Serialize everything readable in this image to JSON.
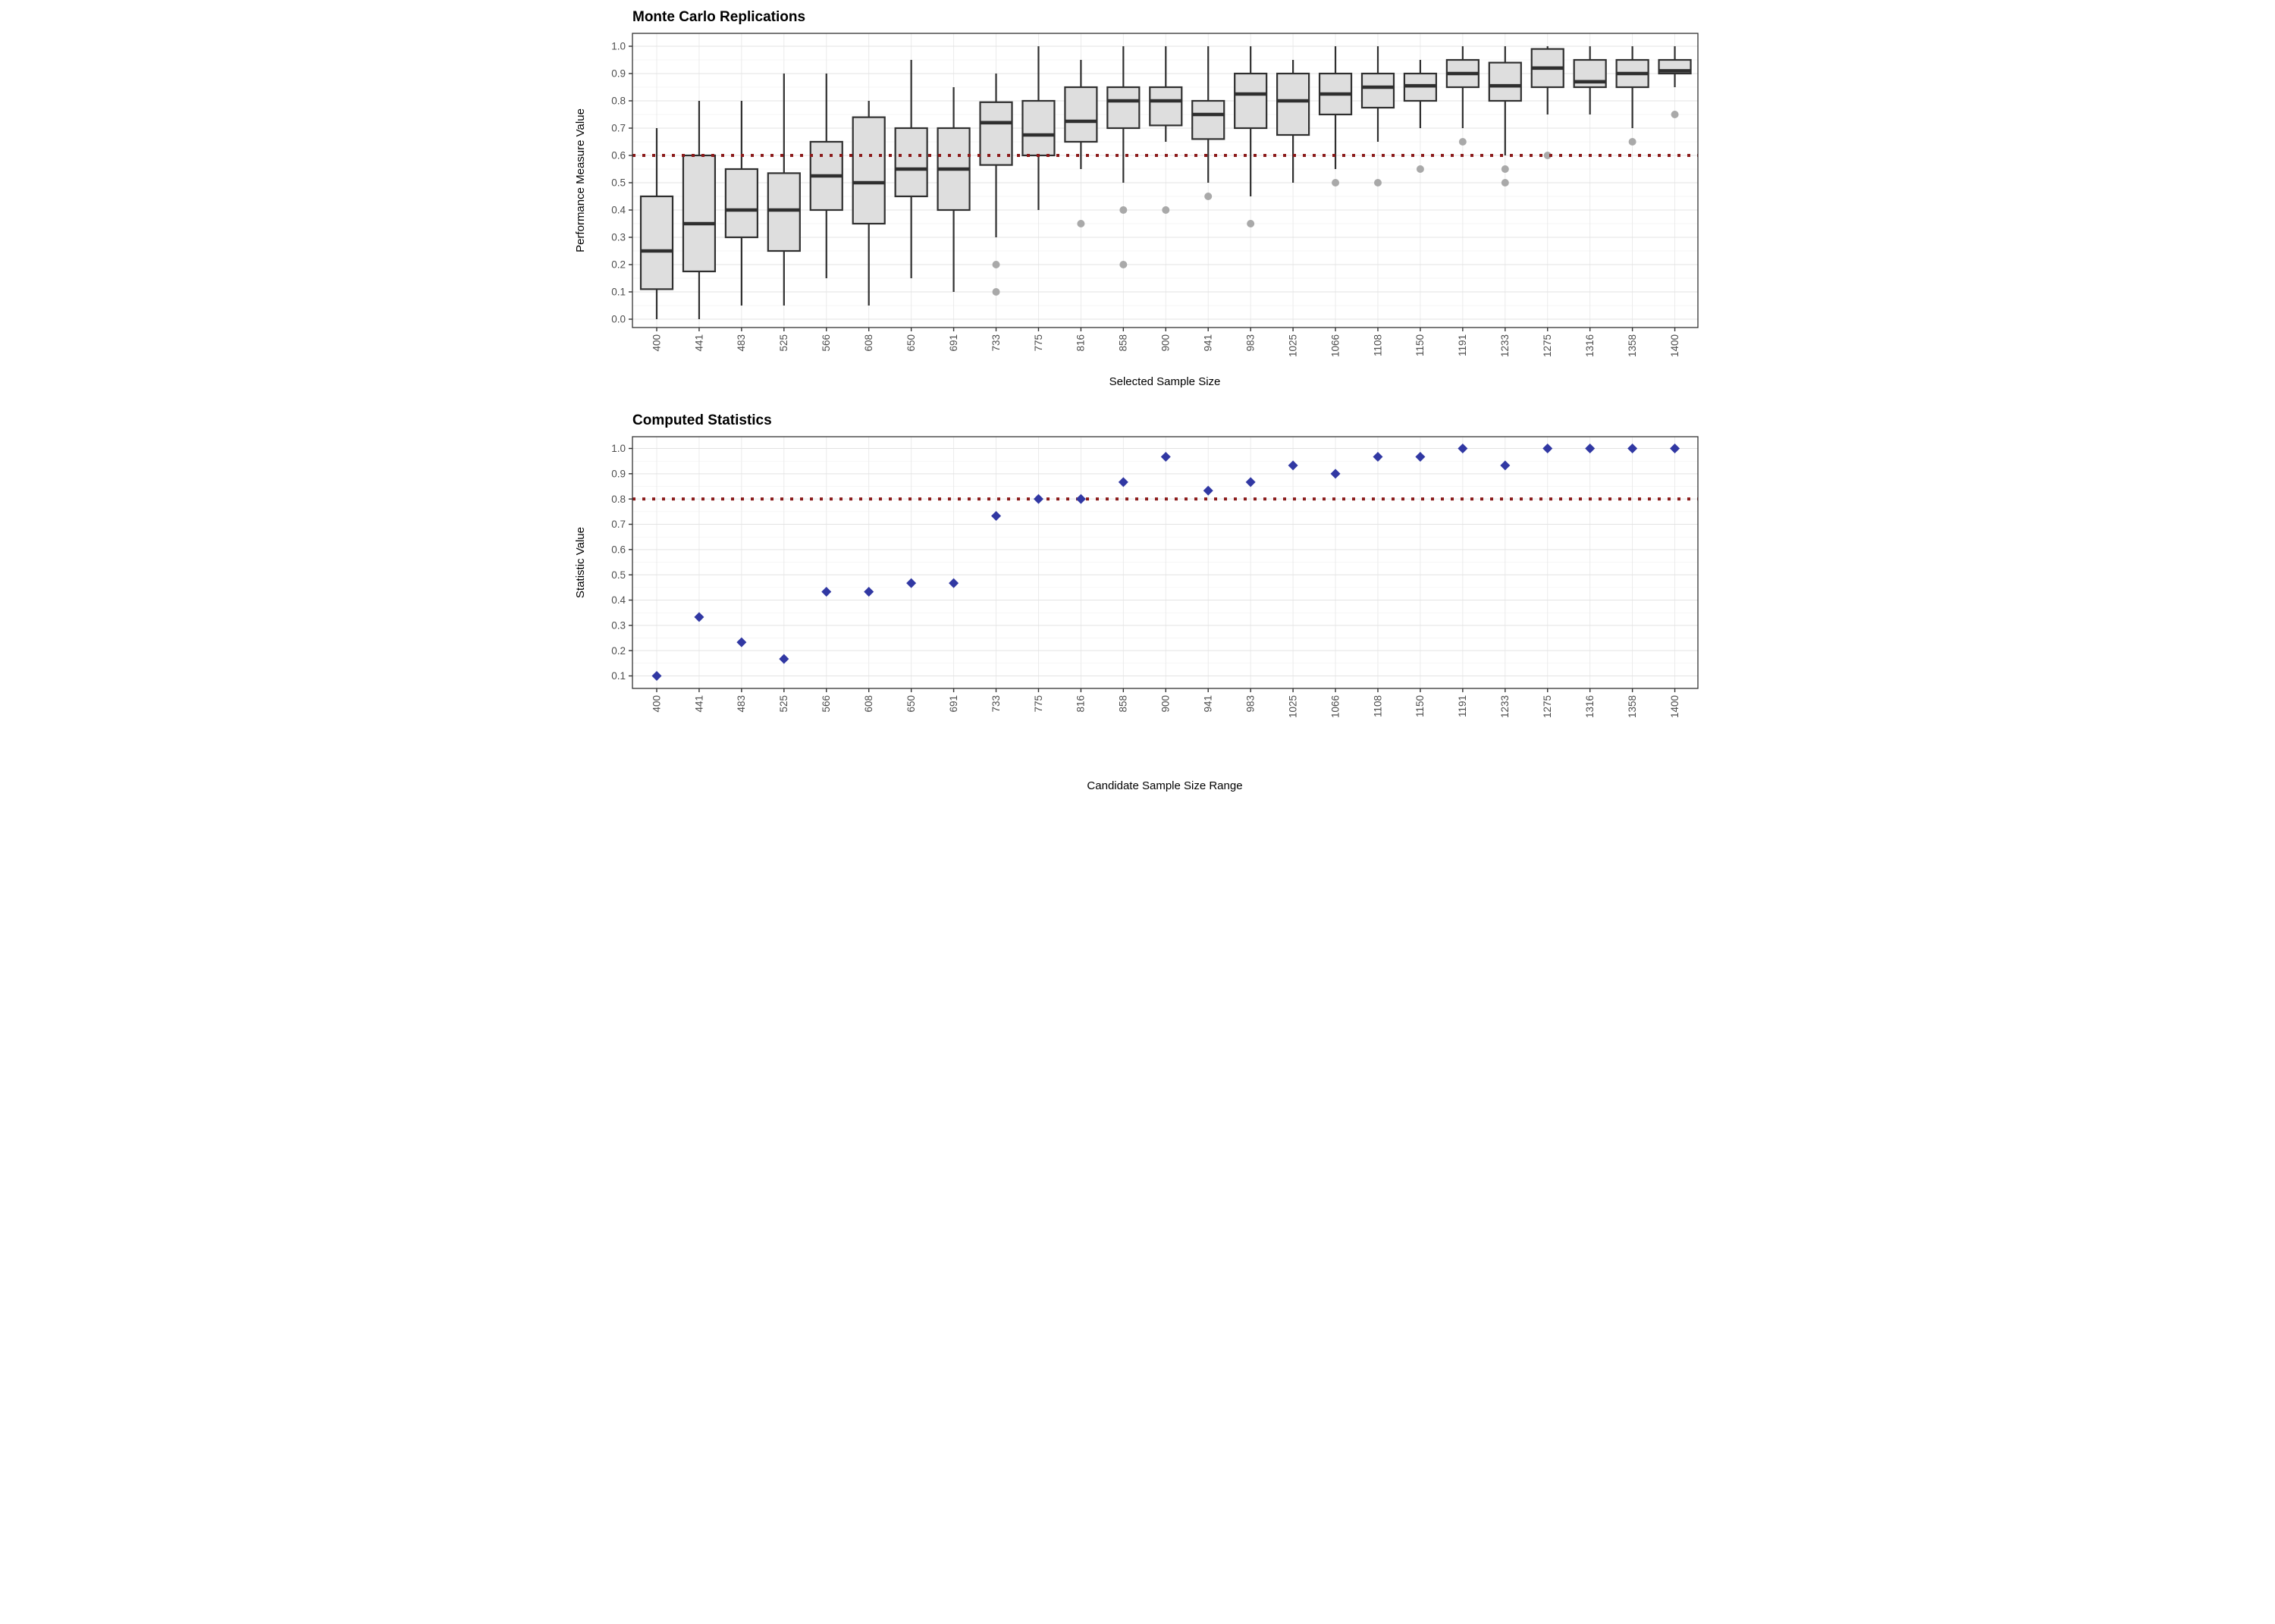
{
  "page": {
    "background": "#FFFFFF"
  },
  "palette": {
    "box_fill": "#DEDEDE",
    "box_border": "#2F2F2F",
    "outlier": "#A9A9A9",
    "reference_red": "#8B1A1A",
    "diamond_blue": "#3138A3",
    "grid_major": "#E3E3E3",
    "grid_minor": "#F2F2F2",
    "grid_vertical": "#E9E9E9",
    "axis_text": "#4D4D4D",
    "panel_border": "#333333",
    "title_color": "#000000"
  },
  "chart_data": [
    {
      "type": "boxplot",
      "title": "Monte Carlo Replications",
      "xlabel": "Selected Sample Size",
      "ylabel": "Performance Measure Value",
      "legend_position": "none",
      "grid": true,
      "ylim": [
        0.0,
        1.0
      ],
      "yticks": [
        "0.0",
        "0.1",
        "0.2",
        "0.3",
        "0.4",
        "0.5",
        "0.6",
        "0.7",
        "0.8",
        "0.9",
        "1.0"
      ],
      "categories": [
        "400",
        "441",
        "483",
        "525",
        "566",
        "608",
        "650",
        "691",
        "733",
        "775",
        "816",
        "858",
        "900",
        "941",
        "983",
        "1025",
        "1066",
        "1108",
        "1150",
        "1191",
        "1233",
        "1275",
        "1316",
        "1358",
        "1400"
      ],
      "reference_line": {
        "value": 0.6,
        "style": "dotted"
      },
      "boxes": [
        {
          "category": "400",
          "whisker_low": 0.0,
          "q1": 0.11,
          "median": 0.25,
          "q3": 0.45,
          "whisker_high": 0.7,
          "outliers": []
        },
        {
          "category": "441",
          "whisker_low": 0.0,
          "q1": 0.175,
          "median": 0.35,
          "q3": 0.6,
          "whisker_high": 0.8,
          "outliers": []
        },
        {
          "category": "483",
          "whisker_low": 0.05,
          "q1": 0.3,
          "median": 0.4,
          "q3": 0.55,
          "whisker_high": 0.8,
          "outliers": []
        },
        {
          "category": "525",
          "whisker_low": 0.05,
          "q1": 0.25,
          "median": 0.4,
          "q3": 0.535,
          "whisker_high": 0.9,
          "outliers": []
        },
        {
          "category": "566",
          "whisker_low": 0.15,
          "q1": 0.4,
          "median": 0.525,
          "q3": 0.65,
          "whisker_high": 0.9,
          "outliers": []
        },
        {
          "category": "608",
          "whisker_low": 0.05,
          "q1": 0.35,
          "median": 0.5,
          "q3": 0.74,
          "whisker_high": 0.8,
          "outliers": []
        },
        {
          "category": "650",
          "whisker_low": 0.15,
          "q1": 0.45,
          "median": 0.55,
          "q3": 0.7,
          "whisker_high": 0.95,
          "outliers": []
        },
        {
          "category": "691",
          "whisker_low": 0.1,
          "q1": 0.4,
          "median": 0.55,
          "q3": 0.7,
          "whisker_high": 0.85,
          "outliers": []
        },
        {
          "category": "733",
          "whisker_low": 0.3,
          "q1": 0.565,
          "median": 0.72,
          "q3": 0.795,
          "whisker_high": 0.9,
          "outliers": [
            0.2,
            0.1
          ]
        },
        {
          "category": "775",
          "whisker_low": 0.4,
          "q1": 0.6,
          "median": 0.675,
          "q3": 0.8,
          "whisker_high": 1.0,
          "outliers": []
        },
        {
          "category": "816",
          "whisker_low": 0.55,
          "q1": 0.65,
          "median": 0.725,
          "q3": 0.85,
          "whisker_high": 0.95,
          "outliers": [
            0.35
          ]
        },
        {
          "category": "858",
          "whisker_low": 0.5,
          "q1": 0.7,
          "median": 0.8,
          "q3": 0.85,
          "whisker_high": 1.0,
          "outliers": [
            0.4,
            0.2
          ]
        },
        {
          "category": "900",
          "whisker_low": 0.65,
          "q1": 0.71,
          "median": 0.8,
          "q3": 0.85,
          "whisker_high": 1.0,
          "outliers": [
            0.4
          ]
        },
        {
          "category": "941",
          "whisker_low": 0.5,
          "q1": 0.66,
          "median": 0.75,
          "q3": 0.8,
          "whisker_high": 1.0,
          "outliers": [
            0.45
          ]
        },
        {
          "category": "983",
          "whisker_low": 0.45,
          "q1": 0.7,
          "median": 0.825,
          "q3": 0.9,
          "whisker_high": 1.0,
          "outliers": [
            0.35
          ]
        },
        {
          "category": "1025",
          "whisker_low": 0.5,
          "q1": 0.675,
          "median": 0.8,
          "q3": 0.9,
          "whisker_high": 0.95,
          "outliers": []
        },
        {
          "category": "1066",
          "whisker_low": 0.55,
          "q1": 0.75,
          "median": 0.825,
          "q3": 0.9,
          "whisker_high": 1.0,
          "outliers": [
            0.5
          ]
        },
        {
          "category": "1108",
          "whisker_low": 0.65,
          "q1": 0.775,
          "median": 0.85,
          "q3": 0.9,
          "whisker_high": 1.0,
          "outliers": [
            0.5
          ]
        },
        {
          "category": "1150",
          "whisker_low": 0.7,
          "q1": 0.8,
          "median": 0.855,
          "q3": 0.9,
          "whisker_high": 0.95,
          "outliers": [
            0.55
          ]
        },
        {
          "category": "1191",
          "whisker_low": 0.7,
          "q1": 0.85,
          "median": 0.9,
          "q3": 0.95,
          "whisker_high": 1.0,
          "outliers": [
            0.65
          ]
        },
        {
          "category": "1233",
          "whisker_low": 0.6,
          "q1": 0.8,
          "median": 0.855,
          "q3": 0.94,
          "whisker_high": 1.0,
          "outliers": [
            0.55,
            0.5
          ]
        },
        {
          "category": "1275",
          "whisker_low": 0.75,
          "q1": 0.85,
          "median": 0.92,
          "q3": 0.99,
          "whisker_high": 1.0,
          "outliers": [
            0.6
          ]
        },
        {
          "category": "1316",
          "whisker_low": 0.75,
          "q1": 0.85,
          "median": 0.87,
          "q3": 0.95,
          "whisker_high": 1.0,
          "outliers": []
        },
        {
          "category": "1358",
          "whisker_low": 0.7,
          "q1": 0.85,
          "median": 0.9,
          "q3": 0.95,
          "whisker_high": 1.0,
          "outliers": [
            0.65
          ]
        },
        {
          "category": "1400",
          "whisker_low": 0.85,
          "q1": 0.9,
          "median": 0.91,
          "q3": 0.95,
          "whisker_high": 1.0,
          "outliers": [
            0.75
          ]
        }
      ]
    },
    {
      "type": "scatter",
      "title": "Computed Statistics",
      "xlabel": "Candidate Sample Size Range",
      "ylabel": "Statistic Value",
      "marker": "diamond",
      "legend_position": "none",
      "grid": true,
      "ylim": [
        0.1,
        1.0
      ],
      "yticks": [
        "0.1",
        "0.2",
        "0.3",
        "0.4",
        "0.5",
        "0.6",
        "0.7",
        "0.8",
        "0.9",
        "1.0"
      ],
      "categories": [
        "400",
        "441",
        "483",
        "525",
        "566",
        "608",
        "650",
        "691",
        "733",
        "775",
        "816",
        "858",
        "900",
        "941",
        "983",
        "1025",
        "1066",
        "1108",
        "1150",
        "1191",
        "1233",
        "1275",
        "1316",
        "1358",
        "1400"
      ],
      "reference_line": {
        "value": 0.8,
        "style": "dotted"
      },
      "values": [
        0.1,
        0.333,
        0.233,
        0.167,
        0.433,
        0.433,
        0.467,
        0.467,
        0.733,
        0.8,
        0.8,
        0.867,
        0.967,
        0.833,
        0.867,
        0.933,
        0.9,
        0.967,
        0.967,
        1.0,
        0.933,
        1.0,
        1.0,
        1.0,
        1.0
      ]
    }
  ]
}
